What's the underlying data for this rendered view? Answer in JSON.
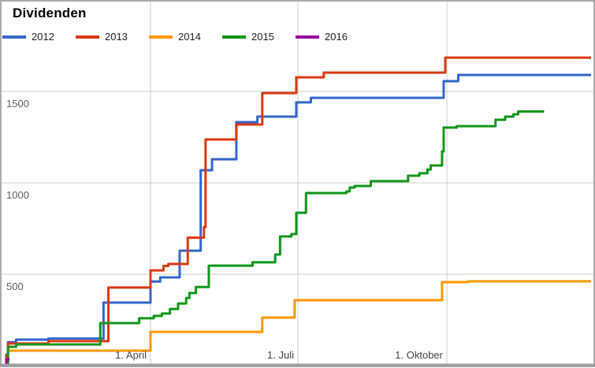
{
  "chart_data": {
    "type": "line",
    "stepped": true,
    "title": "Dividenden",
    "xlabel": "",
    "ylabel": "",
    "ylim": [
      0,
      2000
    ],
    "x_domain_days": [
      1,
      363
    ],
    "grid": true,
    "legend_position": "top",
    "gridline_color": "#cccccc",
    "frame_color": "#ababab",
    "bottom_edge_color": "#9e9e9e",
    "y_ticks": [
      {
        "label": "500",
        "value": 500
      },
      {
        "label": "1000",
        "value": 1000
      },
      {
        "label": "1500",
        "value": 1500
      }
    ],
    "x_ticks": [
      {
        "label": "1. April",
        "day": 91
      },
      {
        "label": "1. Juli",
        "day": 182
      },
      {
        "label": "1. Oktober",
        "day": 274
      }
    ],
    "series": [
      {
        "name": "2012",
        "color": "#3366cc",
        "points": [
          [
            1,
            0
          ],
          [
            2,
            60
          ],
          [
            3,
            128
          ],
          [
            8,
            142
          ],
          [
            28,
            148
          ],
          [
            62,
            345
          ],
          [
            91,
            460
          ],
          [
            97,
            483
          ],
          [
            109,
            629
          ],
          [
            122,
            1069
          ],
          [
            129,
            1129
          ],
          [
            144,
            1332
          ],
          [
            157,
            1362
          ],
          [
            181,
            1440
          ],
          [
            190,
            1465
          ],
          [
            272,
            1556
          ],
          [
            281,
            1590
          ],
          [
            363,
            1590
          ]
        ]
      },
      {
        "name": "2013",
        "color": "#dc3912",
        "points": [
          [
            1,
            0
          ],
          [
            2,
            55
          ],
          [
            3,
            121
          ],
          [
            28,
            134
          ],
          [
            65,
            427
          ],
          [
            91,
            521
          ],
          [
            99,
            545
          ],
          [
            102,
            556
          ],
          [
            114,
            700
          ],
          [
            124,
            758
          ],
          [
            125,
            1237
          ],
          [
            144,
            1319
          ],
          [
            160,
            1491
          ],
          [
            181,
            1577
          ],
          [
            198,
            1603
          ],
          [
            273,
            1685
          ],
          [
            363,
            1685
          ]
        ]
      },
      {
        "name": "2014",
        "color": "#ff9900",
        "points": [
          [
            1,
            0
          ],
          [
            3,
            82
          ],
          [
            91,
            185
          ],
          [
            160,
            263
          ],
          [
            180,
            358
          ],
          [
            271,
            457
          ],
          [
            287,
            461
          ],
          [
            363,
            461
          ]
        ]
      },
      {
        "name": "2015",
        "color": "#109618",
        "points": [
          [
            1,
            0
          ],
          [
            3,
            103
          ],
          [
            8,
            116
          ],
          [
            60,
            233
          ],
          [
            84,
            259
          ],
          [
            93,
            272
          ],
          [
            98,
            285
          ],
          [
            103,
            310
          ],
          [
            108,
            340
          ],
          [
            113,
            370
          ],
          [
            115,
            397
          ],
          [
            119,
            430
          ],
          [
            127,
            547
          ],
          [
            154,
            565
          ],
          [
            168,
            608
          ],
          [
            171,
            707
          ],
          [
            178,
            720
          ],
          [
            181,
            836
          ],
          [
            187,
            944
          ],
          [
            212,
            953
          ],
          [
            214,
            974
          ],
          [
            217,
            983
          ],
          [
            227,
            1009
          ],
          [
            250,
            1039
          ],
          [
            257,
            1052
          ],
          [
            262,
            1073
          ],
          [
            264,
            1095
          ],
          [
            271,
            1172
          ],
          [
            272,
            1302
          ],
          [
            280,
            1310
          ],
          [
            304,
            1345
          ],
          [
            310,
            1362
          ],
          [
            315,
            1375
          ],
          [
            318,
            1390
          ],
          [
            334,
            1390
          ]
        ]
      },
      {
        "name": "2016",
        "color": "#990099",
        "points": [
          [
            1,
            0
          ],
          [
            2,
            35
          ],
          [
            4,
            35
          ]
        ]
      }
    ]
  }
}
